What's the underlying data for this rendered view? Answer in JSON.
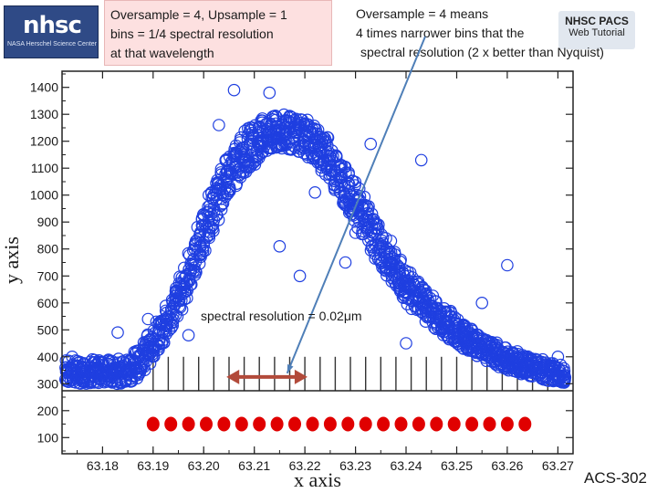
{
  "logo": {
    "text": "nhsc",
    "subtext": "NASA Herschel Science Center"
  },
  "note_left": {
    "lines": [
      "Oversample = 4, Upsample = 1",
      "bins = 1/4 spectral resolution",
      "at that wavelength"
    ]
  },
  "note_right": {
    "lines": [
      "Oversample = 4 means",
      "4 times narrower bins that the",
      "spectral resolution (2 x  better than Nyquist)"
    ]
  },
  "badge": {
    "line1": "NHSC PACS",
    "line2": "Web Tutorial"
  },
  "annotation": {
    "label": "spectral resolution = 0.02μm"
  },
  "footer": {
    "code": "ACS-302"
  },
  "colors": {
    "points": "#1f3fe0",
    "arrow_red": "#b24a3a",
    "arrow_blue": "#4f7fb8",
    "bins": "#e00000"
  },
  "chart_data": {
    "type": "scatter",
    "xlabel": "x axis",
    "ylabel": "y axis",
    "xlim": [
      63.172,
      63.273
    ],
    "ylim": [
      40,
      1460
    ],
    "xticks": [
      "63.18",
      "63.19",
      "63.20",
      "63.21",
      "63.22",
      "63.23",
      "63.24",
      "63.25",
      "63.26",
      "63.27"
    ],
    "yticks": [
      "100",
      "200",
      "300",
      "400",
      "500",
      "600",
      "700",
      "800",
      "900",
      "1000",
      "1100",
      "1200",
      "1300",
      "1400"
    ],
    "grid": false,
    "envelope": {
      "description_free": true,
      "x": [
        63.173,
        63.18,
        63.185,
        63.188,
        63.192,
        63.196,
        63.2,
        63.204,
        63.208,
        63.212,
        63.216,
        63.22,
        63.224,
        63.228,
        63.232,
        63.236,
        63.24,
        63.244,
        63.248,
        63.252,
        63.256,
        63.26,
        63.264,
        63.268,
        63.272
      ],
      "low": [
        300,
        300,
        300,
        340,
        440,
        590,
        790,
        960,
        1080,
        1150,
        1170,
        1150,
        1080,
        960,
        830,
        700,
        600,
        530,
        470,
        420,
        380,
        350,
        330,
        310,
        300
      ],
      "high": [
        390,
        390,
        400,
        450,
        560,
        720,
        930,
        1120,
        1240,
        1290,
        1300,
        1290,
        1230,
        1110,
        980,
        840,
        730,
        650,
        580,
        520,
        470,
        430,
        400,
        380,
        370
      ]
    },
    "outliers": [
      {
        "x": 63.174,
        "y": 400
      },
      {
        "x": 63.178,
        "y": 390
      },
      {
        "x": 63.183,
        "y": 490
      },
      {
        "x": 63.189,
        "y": 540
      },
      {
        "x": 63.195,
        "y": 610
      },
      {
        "x": 63.197,
        "y": 480
      },
      {
        "x": 63.201,
        "y": 1000
      },
      {
        "x": 63.203,
        "y": 1260
      },
      {
        "x": 63.206,
        "y": 1390
      },
      {
        "x": 63.213,
        "y": 1380
      },
      {
        "x": 63.215,
        "y": 810
      },
      {
        "x": 63.219,
        "y": 700
      },
      {
        "x": 63.222,
        "y": 1010
      },
      {
        "x": 63.228,
        "y": 750
      },
      {
        "x": 63.23,
        "y": 860
      },
      {
        "x": 63.233,
        "y": 1190
      },
      {
        "x": 63.237,
        "y": 830
      },
      {
        "x": 63.24,
        "y": 450
      },
      {
        "x": 63.243,
        "y": 1130
      },
      {
        "x": 63.248,
        "y": 480
      },
      {
        "x": 63.255,
        "y": 600
      },
      {
        "x": 63.26,
        "y": 740
      },
      {
        "x": 63.262,
        "y": 420
      },
      {
        "x": 63.267,
        "y": 390
      },
      {
        "x": 63.27,
        "y": 400
      },
      {
        "x": 63.271,
        "y": 330
      }
    ],
    "bin_marker_x": [
      63.19,
      63.193,
      63.196,
      63.199,
      63.202,
      63.205,
      63.208,
      63.211,
      63.214,
      63.217,
      63.22,
      63.223,
      63.226,
      63.229,
      63.232,
      63.235,
      63.238,
      63.241,
      63.244,
      63.247,
      63.25,
      63.253,
      63.256,
      63.259,
      63.262,
      63.265,
      63.268
    ],
    "bin_markers_y": 150,
    "bin_dots": [
      63.19,
      63.1935,
      63.197,
      63.2005,
      63.204,
      63.2075,
      63.211,
      63.2145,
      63.218,
      63.2215,
      63.225,
      63.2285,
      63.232,
      63.2355,
      63.239,
      63.2425,
      63.246,
      63.2495,
      63.253,
      63.2565,
      63.26,
      63.2635
    ],
    "resolution_arrow": {
      "x_start": 63.2045,
      "x_end": 63.2205,
      "y": 325
    }
  }
}
